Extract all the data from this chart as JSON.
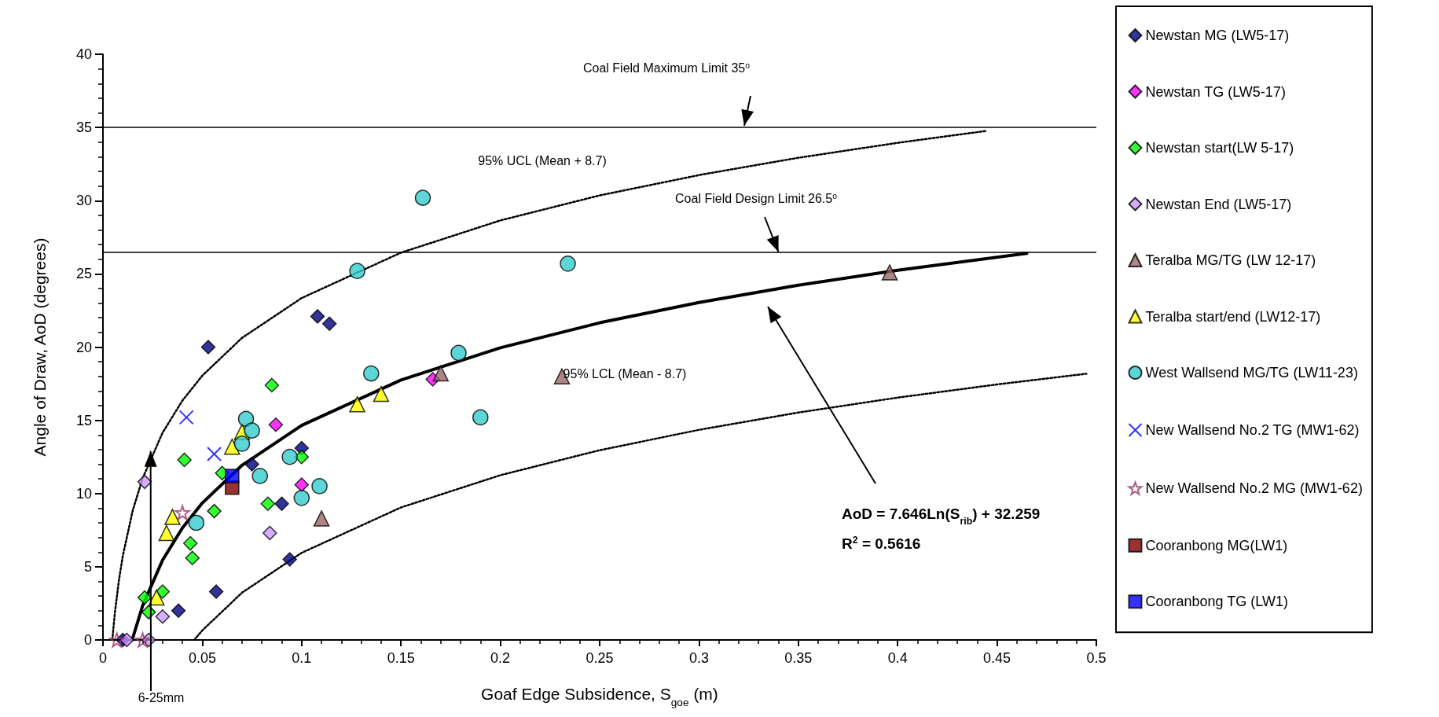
{
  "chart_data": {
    "type": "scatter",
    "xlabel": "Goaf Edge Subsidence, S$_{goe}$ (m)",
    "ylabel": "Angle of Draw, AoD (degrees)",
    "xlim": [
      0,
      0.5
    ],
    "xticks": [
      0,
      0.05,
      0.1,
      0.15,
      0.2,
      0.25,
      0.3,
      0.35,
      0.4,
      0.45,
      0.5
    ],
    "ylim": [
      0,
      40
    ],
    "yticks": [
      0,
      5,
      10,
      15,
      20,
      25,
      30,
      35,
      40
    ],
    "grid": false,
    "legend": "right",
    "series": [
      {
        "name": "Newstan MG (LW5-17)",
        "color": "#000080",
        "marker": "diamond",
        "x": [
          0.053,
          0.108,
          0.114,
          0.075,
          0.1,
          0.09,
          0.094,
          0.057,
          0.038,
          0.01
        ],
        "values": [
          20.0,
          22.1,
          21.6,
          12.0,
          13.1,
          9.3,
          5.5,
          3.3,
          2.0,
          0
        ]
      },
      {
        "name": "Newstan TG (LW5-17)",
        "color": "#ff00ff",
        "marker": "diamond",
        "x": [
          0.087,
          0.1,
          0.166
        ],
        "values": [
          14.7,
          10.6,
          17.8
        ]
      },
      {
        "name": "Newstan start(LW 5-17)",
        "color": "#00ff00",
        "marker": "diamond",
        "x": [
          0.085,
          0.041,
          0.06,
          0.1,
          0.056,
          0.083,
          0.044,
          0.045,
          0.021,
          0.03,
          0.023
        ],
        "values": [
          17.4,
          12.3,
          11.4,
          12.5,
          8.8,
          9.3,
          6.6,
          5.6,
          2.9,
          3.3,
          1.9
        ]
      },
      {
        "name": "Newstan End (LW5-17)",
        "color": "#cc99ff",
        "marker": "diamond",
        "x": [
          0.021,
          0.084,
          0.03,
          0.012,
          0.023
        ],
        "values": [
          10.8,
          7.3,
          1.6,
          0,
          0
        ]
      },
      {
        "name": "Teralba MG/TG (LW 12-17)",
        "color": "#996666",
        "marker": "triangle",
        "x": [
          0.11,
          0.17,
          0.231,
          0.396
        ],
        "values": [
          8.3,
          18.2,
          18.0,
          25.1
        ]
      },
      {
        "name": "Teralba start/end (LW12-17)",
        "color": "#ffff00",
        "marker": "triangle",
        "x": [
          0.035,
          0.032,
          0.027,
          0.065,
          0.07,
          0.128,
          0.14
        ],
        "values": [
          8.4,
          7.3,
          2.9,
          13.2,
          14.2,
          16.1,
          16.8
        ]
      },
      {
        "name": "West Wallsend MG/TG (LW11-23)",
        "color": "#33cccc",
        "marker": "circle",
        "x": [
          0.047,
          0.07,
          0.072,
          0.075,
          0.079,
          0.094,
          0.1,
          0.109,
          0.135,
          0.161,
          0.128,
          0.179,
          0.19,
          0.234
        ],
        "values": [
          8.0,
          13.4,
          15.1,
          14.3,
          11.2,
          12.5,
          9.7,
          10.5,
          18.2,
          30.2,
          25.2,
          19.6,
          15.2,
          25.7
        ]
      },
      {
        "name": "New Wallsend No.2 TG (MW1-62)",
        "color": "#0000ff",
        "marker": "cross",
        "x": [
          0.042,
          0.056
        ],
        "values": [
          15.2,
          12.7
        ]
      },
      {
        "name": "New Wallsend No.2 MG (MW1-62)",
        "color": "#993366",
        "marker": "star",
        "x": [
          0.04,
          0.007,
          0.02
        ],
        "values": [
          8.7,
          0,
          0
        ]
      },
      {
        "name": "Cooranbong MG(LW1)",
        "color": "#800000",
        "marker": "square",
        "x": [
          0.065
        ],
        "values": [
          10.4
        ]
      },
      {
        "name": "Cooranbong TG (LW1)",
        "color": "#0000ff",
        "marker": "square",
        "x": [
          0.065
        ],
        "values": [
          11.2
        ]
      },
      {
        "type": "line",
        "color": "#000000",
        "marker": "none",
        "line_style": "solid",
        "x": [
          0.0147,
          0.02,
          0.03,
          0.04,
          0.05,
          0.07,
          0.1,
          0.15,
          0.2,
          0.25,
          0.3,
          0.35,
          0.4,
          0.465
        ],
        "values": [
          0,
          2.35,
          5.45,
          7.65,
          9.35,
          11.93,
          14.65,
          17.75,
          19.95,
          21.66,
          23.05,
          24.23,
          25.25,
          26.4
        ]
      },
      {
        "type": "line",
        "color": "#000000",
        "marker": "none",
        "line_style": "dotted",
        "x": [
          0.0047,
          0.006,
          0.008,
          0.01,
          0.015,
          0.02,
          0.03,
          0.04,
          0.05,
          0.07,
          0.1,
          0.15,
          0.2,
          0.25,
          0.3,
          0.35,
          0.4,
          0.445
        ],
        "values": [
          0,
          1.84,
          4.04,
          5.75,
          8.85,
          11.05,
          14.15,
          16.35,
          18.05,
          20.63,
          23.35,
          26.45,
          28.65,
          30.36,
          31.75,
          32.93,
          33.95,
          34.77
        ]
      },
      {
        "type": "line",
        "color": "#000000",
        "marker": "none",
        "line_style": "dotted",
        "x": [
          0.0459,
          0.05,
          0.07,
          0.1,
          0.15,
          0.2,
          0.25,
          0.3,
          0.35,
          0.4,
          0.45,
          0.495
        ],
        "values": [
          0,
          0.65,
          3.23,
          5.95,
          9.05,
          11.25,
          12.96,
          14.35,
          15.53,
          16.55,
          17.45,
          18.18
        ]
      }
    ],
    "ref_lines": [
      {
        "axis": "y",
        "value": 35
      },
      {
        "axis": "y",
        "value": 26.5
      }
    ],
    "annotations": [
      "Coal Field Maximum Limit 35$^{o}$",
      {
        "text": "Coal Field Design Limit 26.5$^{o}$",
        "x": 0.34,
        "y": 26.5
      },
      "95% UCL (Mean + 8.7)",
      "95% LCL (Mean - 8.7)",
      "AoD = 7.646Ln(S$_{rib}$) + 32.259",
      "R$^{2}$ = 0.5616",
      {
        "text": "6-25mm",
        "x": 0.024,
        "y": 12.9
      }
    ]
  }
}
